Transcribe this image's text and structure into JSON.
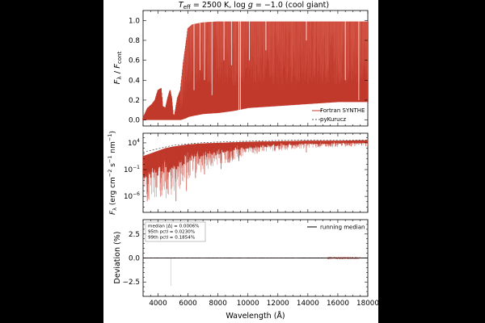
{
  "figure": {
    "title": "T_eff = 2500 K,  log g = −1.0 (cool giant)",
    "title_parts": {
      "teff_sym": "T",
      "teff_sub": "eff",
      "teff_val": " = 2500 K,  log ",
      "g_sym": "g",
      "g_val": " = −1.0 (cool giant)"
    },
    "xlabel": "Wavelength (Å)"
  },
  "chart_data": [
    {
      "type": "line",
      "panel": "normalized",
      "ylabel": "F_λ / F_cont",
      "xlim": [
        3000,
        18000
      ],
      "ylim": [
        -0.06,
        1.1
      ],
      "x_ticks": [
        4000,
        6000,
        8000,
        10000,
        12000,
        14000,
        16000,
        18000
      ],
      "x_tick_labels": [
        "4000",
        "6000",
        "8000",
        "10000",
        "12000",
        "14000",
        "16000",
        "18000"
      ],
      "y_ticks": [
        0.0,
        0.2,
        0.4,
        0.6,
        0.8,
        1.0
      ],
      "y_tick_labels": [
        "0.0",
        "0.2",
        "0.4",
        "0.6",
        "0.8",
        "1.0"
      ],
      "legend_position": "center-right",
      "series": [
        {
          "name": "Fortran SYNTHE",
          "color": "#c0392b",
          "style": "solid"
        },
        {
          "name": "pyKurucz",
          "color": "#555555",
          "style": "dashed"
        }
      ],
      "envelope": {
        "x": [
          3000,
          3300,
          3600,
          3800,
          4000,
          4200,
          4300,
          4500,
          4650,
          4800,
          4900,
          5000,
          5100,
          5300,
          5500,
          5700,
          5900,
          6000,
          6300,
          7000,
          8000,
          9000,
          10000,
          12000,
          14000,
          16000,
          18000
        ],
        "upper": [
          0.02,
          0.12,
          0.16,
          0.2,
          0.3,
          0.32,
          0.14,
          0.12,
          0.22,
          0.3,
          0.22,
          0.06,
          0.04,
          0.22,
          0.3,
          0.58,
          0.8,
          0.92,
          0.96,
          0.98,
          0.99,
          0.99,
          0.99,
          0.99,
          0.99,
          0.99,
          0.99
        ],
        "lower": [
          0,
          0,
          0,
          0,
          0,
          0,
          0,
          0,
          0,
          0,
          0,
          0,
          0,
          0,
          0,
          0.01,
          0.02,
          0.03,
          0.04,
          0.06,
          0.07,
          0.09,
          0.12,
          0.14,
          0.16,
          0.18,
          0.18
        ]
      },
      "absorption_features": [
        {
          "x": 6400,
          "depth_to": 0.3
        },
        {
          "x": 6800,
          "depth_to": 0.5
        },
        {
          "x": 7100,
          "depth_to": 0.4
        },
        {
          "x": 7600,
          "depth_to": 0.25
        },
        {
          "x": 8400,
          "depth_to": 0.6
        },
        {
          "x": 8900,
          "depth_to": 0.55
        },
        {
          "x": 9400,
          "depth_to": 0.05
        },
        {
          "x": 9500,
          "depth_to": 0.02
        },
        {
          "x": 10100,
          "depth_to": 0.6
        },
        {
          "x": 11200,
          "depth_to": 0.7
        },
        {
          "x": 13900,
          "depth_to": 0.8
        },
        {
          "x": 16500,
          "depth_to": 0.4
        },
        {
          "x": 17400,
          "depth_to": 0.2
        }
      ]
    },
    {
      "type": "line",
      "panel": "flux",
      "ylabel": "F_λ (erg cm^-2 s^-1 nm^-1)",
      "scale": "log",
      "xlim": [
        3000,
        18000
      ],
      "ylim_log10": [
        -9,
        5.8
      ],
      "y_ticks_log10": [
        -6,
        -1,
        4
      ],
      "y_tick_labels": [
        "10",
        "10",
        "10"
      ],
      "y_tick_exponents": [
        "−6",
        "−1",
        "4"
      ],
      "envelope_log10": {
        "x": [
          3000,
          3500,
          4000,
          4500,
          5000,
          5500,
          6000,
          7000,
          8000,
          9000,
          10000,
          12000,
          14000,
          16000,
          18000
        ],
        "upper": [
          1.5,
          2.0,
          2.5,
          3.0,
          3.3,
          3.5,
          3.7,
          3.9,
          4.0,
          4.1,
          4.2,
          4.3,
          4.4,
          4.4,
          4.5
        ],
        "lower": [
          -7.2,
          -7.2,
          -6.8,
          -6.5,
          -6.0,
          -4.5,
          -3.2,
          -1.5,
          -0.5,
          0.5,
          1.5,
          2.5,
          3.0,
          3.2,
          3.3
        ]
      },
      "continuum_log10": {
        "x": [
          3000,
          5000,
          7000,
          9000,
          12000,
          15000,
          18000
        ],
        "y": [
          2.2,
          3.5,
          4.0,
          4.2,
          4.4,
          4.5,
          4.5
        ]
      },
      "absorption_spikes": [
        {
          "x": 5200,
          "to": -6.9
        },
        {
          "x": 5900,
          "to": -5.0
        },
        {
          "x": 6500,
          "to": -2.6
        },
        {
          "x": 7100,
          "to": -1.9
        },
        {
          "x": 8200,
          "to": -0.9
        },
        {
          "x": 9400,
          "to": 0.6
        },
        {
          "x": 13900,
          "to": 2.2
        }
      ]
    },
    {
      "type": "line",
      "panel": "deviation",
      "ylabel": "Deviation (%)",
      "xlabel": "Wavelength (Å)",
      "xlim": [
        3000,
        18000
      ],
      "ylim": [
        -4.0,
        4.0
      ],
      "y_ticks": [
        -2.5,
        0.0,
        2.5
      ],
      "y_tick_labels": [
        "−2.5",
        "0.0",
        "2.5"
      ],
      "series": [
        {
          "name": "running median",
          "color": "#000000"
        }
      ],
      "noise_band": {
        "x": [
          15300,
          17500
        ],
        "half_width": 0.12
      },
      "stats": [
        "median |Δ| = 0.0006%",
        "95th pctl = 0.0230%",
        "99th pctl = 0.1854%"
      ]
    }
  ]
}
